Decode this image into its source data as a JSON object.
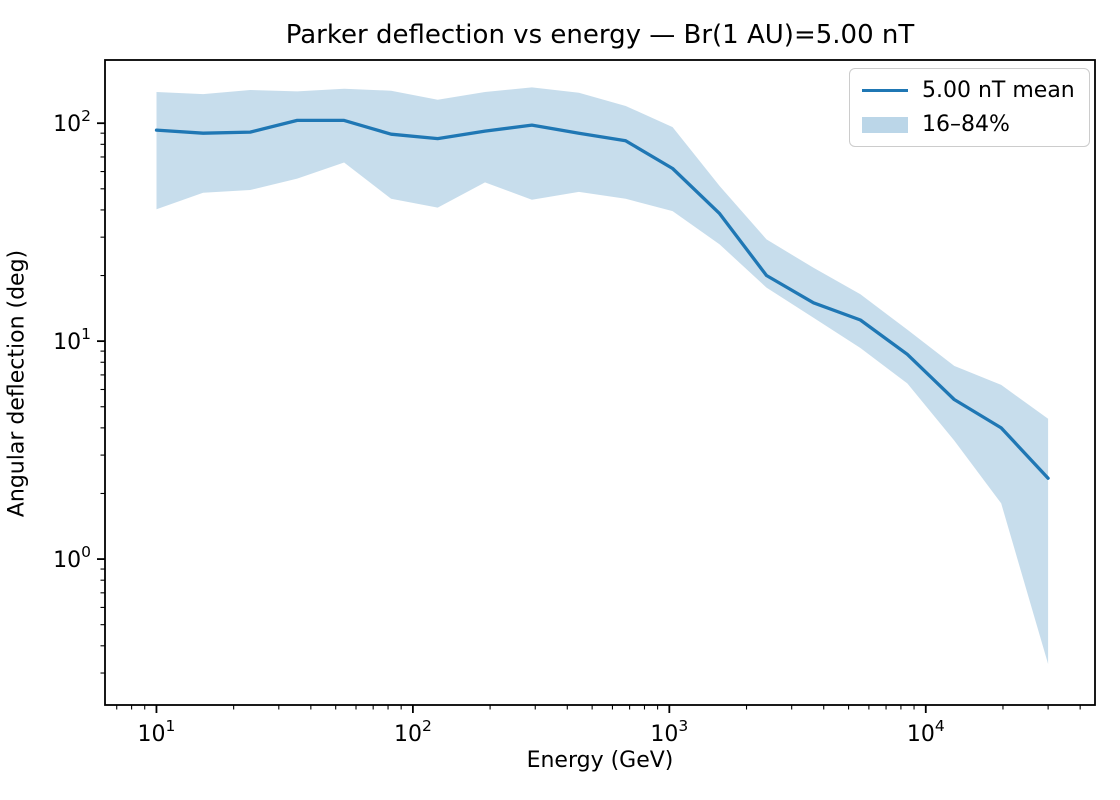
{
  "figure": {
    "title": "Parker deflection vs energy — Br(1 AU)=5.00 nT",
    "xlabel": "Energy (GeV)",
    "ylabel": "Angular deflection (deg)",
    "background_color": "#ffffff",
    "spine_color": "#000000",
    "tick_color": "#000000",
    "line_color": "#1f77b4",
    "band_color": "#1f77b4",
    "band_opacity": 0.25,
    "legend_border_color": "#cccccc"
  },
  "legend": {
    "entries": [
      {
        "label": "5.00 nT mean",
        "type": "line"
      },
      {
        "label": "16–84%",
        "type": "patch"
      }
    ]
  },
  "chart_data": {
    "type": "line",
    "title": "Parker deflection vs energy — Br(1 AU)=5.00 nT",
    "xlabel": "Energy (GeV)",
    "ylabel": "Angular deflection (deg)",
    "xscale": "log",
    "yscale": "log",
    "xlim": [
      6.3,
      45700
    ],
    "ylim": [
      0.214,
      195
    ],
    "x_major_ticks": [
      10,
      100,
      1000,
      10000
    ],
    "y_major_ticks": [
      1,
      10,
      100
    ],
    "grid": false,
    "legend_position": "upper right",
    "x": [
      10,
      15.2,
      23.2,
      35.4,
      53.9,
      82.2,
      125,
      191,
      291,
      444,
      676,
      1030,
      1570,
      2393,
      3648,
      5559,
      8472,
      12912,
      19679,
      30000
    ],
    "series": [
      {
        "name": "5.00 nT mean",
        "values": [
          93,
          90,
          91,
          103,
          103,
          89,
          85,
          92,
          98,
          90,
          83,
          62,
          38.5,
          20,
          15,
          12.5,
          8.7,
          5.4,
          4.0,
          2.35
        ]
      },
      {
        "name": "84th percentile (band top)",
        "values": [
          139,
          136,
          142,
          140,
          144,
          141,
          128,
          139,
          146,
          138,
          120,
          96,
          51.5,
          29.3,
          21.7,
          16.4,
          11.3,
          7.7,
          6.3,
          4.4
        ]
      },
      {
        "name": "16th percentile (band bottom)",
        "values": [
          40.3,
          48,
          49.4,
          55.7,
          66,
          45,
          41,
          53.5,
          44.5,
          48.4,
          45,
          39.5,
          27.8,
          17.6,
          12.8,
          9.3,
          6.4,
          3.5,
          1.8,
          0.33
        ]
      }
    ]
  }
}
